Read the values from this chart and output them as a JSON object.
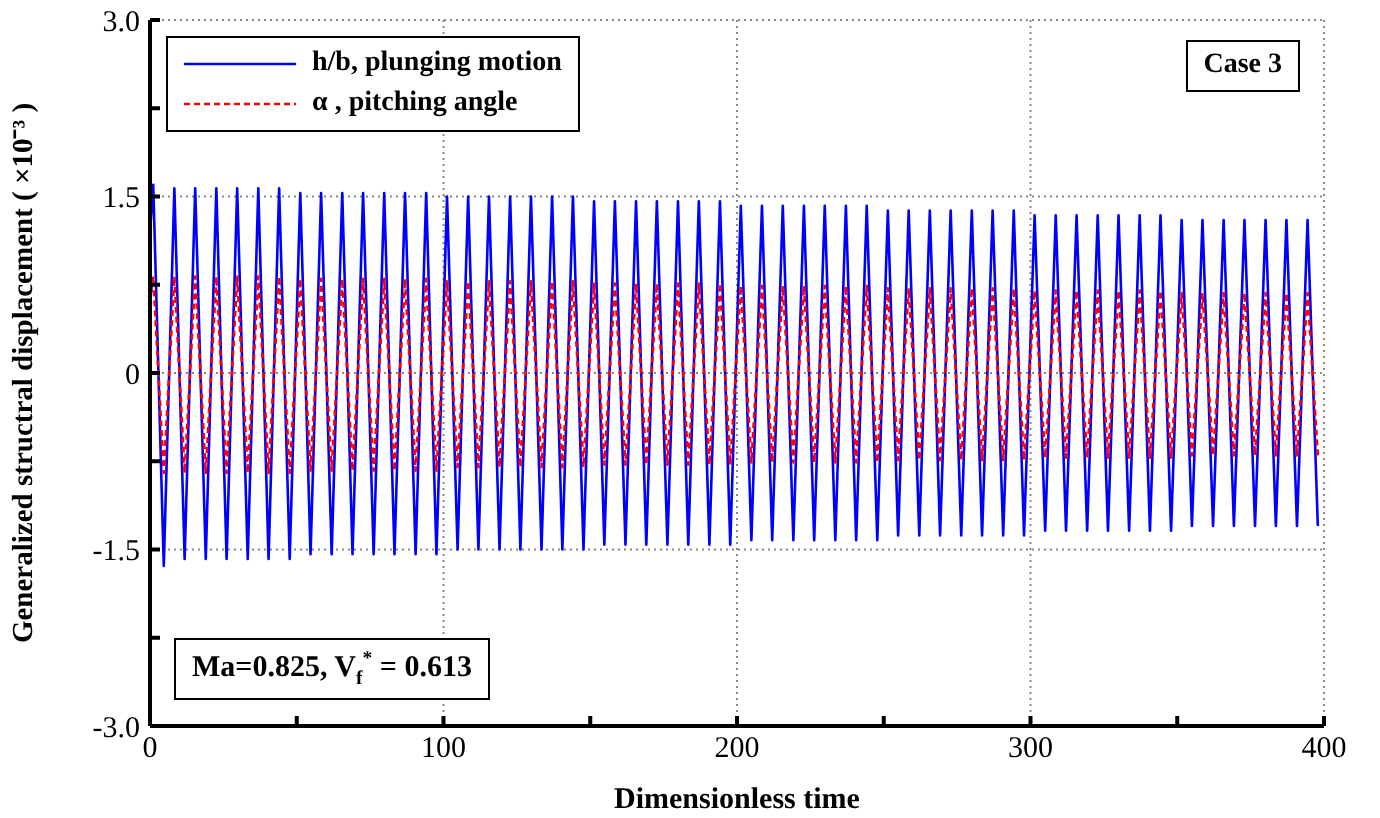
{
  "chart_data": {
    "type": "line",
    "xlabel": "Dimensionless time",
    "ylabel": "Generalized structral displacement ( ×10⁻³ )",
    "annotations": [
      "Case 3",
      "Ma=0.825, V$_{f}$$^{*}$ = 0.613"
    ],
    "x": [
      0,
      1.1,
      4.7,
      8.3,
      11.8,
      15.4,
      19.0,
      22.6,
      26.1,
      29.7,
      33.3,
      36.9,
      40.4,
      44.0,
      47.6,
      51.2,
      54.7,
      58.3,
      61.9,
      65.5,
      69.0,
      72.6,
      76.2,
      79.8,
      83.3,
      86.9,
      90.5,
      94.1,
      97.6,
      101.2,
      104.8,
      108.4,
      111.9,
      115.5,
      119.1,
      122.7,
      126.2,
      129.8,
      133.4,
      137.0,
      140.5,
      144.1,
      147.7,
      151.3,
      154.8,
      158.4,
      162.0,
      165.6,
      169.1,
      172.7,
      176.3,
      179.9,
      183.4,
      187.0,
      190.6,
      194.2,
      197.7,
      201.3,
      204.9,
      208.5,
      212.0,
      215.6,
      219.2,
      222.8,
      226.3,
      229.9,
      233.5,
      237.1,
      240.6,
      244.2,
      247.8,
      251.4,
      254.9,
      258.5,
      262.1,
      265.7,
      269.2,
      272.8,
      276.4,
      280.0,
      283.5,
      287.1,
      290.7,
      294.3,
      297.8,
      301.4,
      305.0,
      308.6,
      312.1,
      315.7,
      319.3,
      322.9,
      326.4,
      330.0,
      333.6,
      337.2,
      340.7,
      344.3,
      347.9,
      351.5,
      355.0,
      358.6,
      362.2,
      365.8,
      369.3,
      372.9,
      376.5,
      380.1,
      383.6,
      387.2,
      390.8,
      394.4,
      397.9
    ],
    "series": [
      {
        "name": "h/b, plunging motion",
        "color": "#0000ff",
        "line_style": "solid",
        "values": [
          1.2,
          1.6,
          -1.64,
          1.57,
          -1.58,
          1.57,
          -1.58,
          1.57,
          -1.58,
          1.57,
          -1.58,
          1.57,
          -1.58,
          1.57,
          -1.58,
          1.53,
          -1.54,
          1.53,
          -1.54,
          1.53,
          -1.54,
          1.53,
          -1.54,
          1.53,
          -1.54,
          1.53,
          -1.54,
          1.53,
          -1.54,
          1.5,
          -1.5,
          1.5,
          -1.5,
          1.5,
          -1.5,
          1.5,
          -1.5,
          1.5,
          -1.5,
          1.5,
          -1.5,
          1.5,
          -1.5,
          1.46,
          -1.46,
          1.46,
          -1.46,
          1.46,
          -1.46,
          1.46,
          -1.46,
          1.46,
          -1.46,
          1.46,
          -1.46,
          1.46,
          -1.46,
          1.42,
          -1.42,
          1.42,
          -1.42,
          1.42,
          -1.42,
          1.42,
          -1.42,
          1.42,
          -1.42,
          1.42,
          -1.42,
          1.42,
          -1.42,
          1.38,
          -1.38,
          1.38,
          -1.38,
          1.38,
          -1.38,
          1.38,
          -1.38,
          1.38,
          -1.38,
          1.38,
          -1.38,
          1.38,
          -1.38,
          1.34,
          -1.34,
          1.34,
          -1.34,
          1.34,
          -1.34,
          1.34,
          -1.34,
          1.34,
          -1.34,
          1.34,
          -1.34,
          1.34,
          -1.34,
          1.3,
          -1.3,
          1.3,
          -1.3,
          1.3,
          -1.3,
          1.3,
          -1.3,
          1.3,
          -1.3,
          1.3,
          -1.3,
          1.3,
          -1.3
        ]
      },
      {
        "name": "α , pitching angle",
        "color": "#ff0000",
        "line_style": "dashed",
        "values": [
          0.6,
          0.82,
          -0.85,
          0.82,
          -0.85,
          0.82,
          -0.85,
          0.82,
          -0.85,
          0.82,
          -0.85,
          0.82,
          -0.85,
          0.82,
          -0.85,
          0.8,
          -0.83,
          0.8,
          -0.83,
          0.8,
          -0.83,
          0.8,
          -0.83,
          0.8,
          -0.83,
          0.8,
          -0.83,
          0.8,
          -0.83,
          0.78,
          -0.8,
          0.78,
          -0.8,
          0.78,
          -0.8,
          0.78,
          -0.8,
          0.78,
          -0.8,
          0.78,
          -0.8,
          0.78,
          -0.8,
          0.76,
          -0.78,
          0.76,
          -0.78,
          0.76,
          -0.78,
          0.76,
          -0.78,
          0.76,
          -0.78,
          0.76,
          -0.78,
          0.76,
          -0.78,
          0.74,
          -0.76,
          0.74,
          -0.76,
          0.74,
          -0.76,
          0.74,
          -0.76,
          0.74,
          -0.76,
          0.74,
          -0.76,
          0.74,
          -0.76,
          0.72,
          -0.74,
          0.72,
          -0.74,
          0.72,
          -0.74,
          0.72,
          -0.74,
          0.72,
          -0.74,
          0.72,
          -0.74,
          0.72,
          -0.74,
          0.7,
          -0.72,
          0.7,
          -0.72,
          0.7,
          -0.72,
          0.7,
          -0.72,
          0.7,
          -0.72,
          0.7,
          -0.72,
          0.7,
          -0.72,
          0.68,
          -0.7,
          0.68,
          -0.7,
          0.68,
          -0.7,
          0.68,
          -0.7,
          0.68,
          -0.7,
          0.68,
          -0.7,
          0.68,
          -0.7
        ]
      }
    ],
    "xlim": [
      0,
      400
    ],
    "xticks": [
      0,
      {
        "value": 50,
        "label": null
      },
      100,
      {
        "value": 150,
        "label": null
      },
      200,
      {
        "value": 250,
        "label": null
      },
      300,
      {
        "value": 350,
        "label": null
      },
      400
    ],
    "ylim": [
      -3,
      3
    ],
    "yticks": [
      {
        "value": -3,
        "label": "-3.0"
      },
      {
        "value": -2.25,
        "label": null
      },
      {
        "value": -1.5,
        "label": "-1.5"
      },
      {
        "value": -0.75,
        "label": null
      },
      0,
      {
        "value": 0.75,
        "label": null
      },
      {
        "value": 1.5,
        "label": "1.5"
      },
      {
        "value": 2.25,
        "label": null
      },
      {
        "value": 3,
        "label": "3.0"
      }
    ],
    "grid": true,
    "legend": "top left"
  }
}
